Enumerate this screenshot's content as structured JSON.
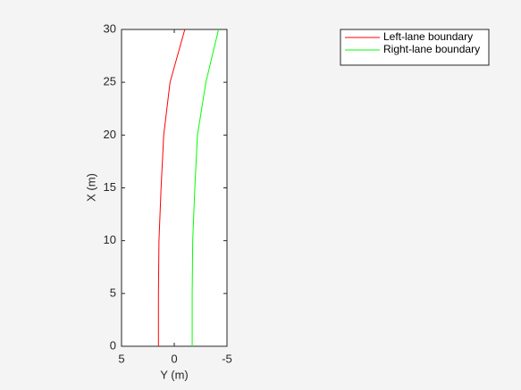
{
  "chart_data": {
    "type": "line",
    "swap_axes": true,
    "xlabel": "X (m)",
    "ylabel": "Y (m)",
    "x": [
      0,
      5,
      10,
      15,
      20,
      25,
      30
    ],
    "series": [
      {
        "name": "Left-lane boundary",
        "color": "#ff0000",
        "values": [
          1.5,
          1.5,
          1.45,
          1.25,
          1.0,
          0.4,
          -1.0
        ]
      },
      {
        "name": "Right-lane boundary",
        "color": "#00ff00",
        "values": [
          -1.7,
          -1.7,
          -1.75,
          -1.95,
          -2.2,
          -3.0,
          -4.2
        ]
      }
    ],
    "xlim": [
      0,
      30
    ],
    "xticks": [
      0,
      5,
      10,
      15,
      20,
      25,
      30
    ],
    "ylim": [
      5,
      -5
    ],
    "yticks": [
      5,
      0,
      -5
    ],
    "grid": false,
    "legend": "top-right"
  }
}
